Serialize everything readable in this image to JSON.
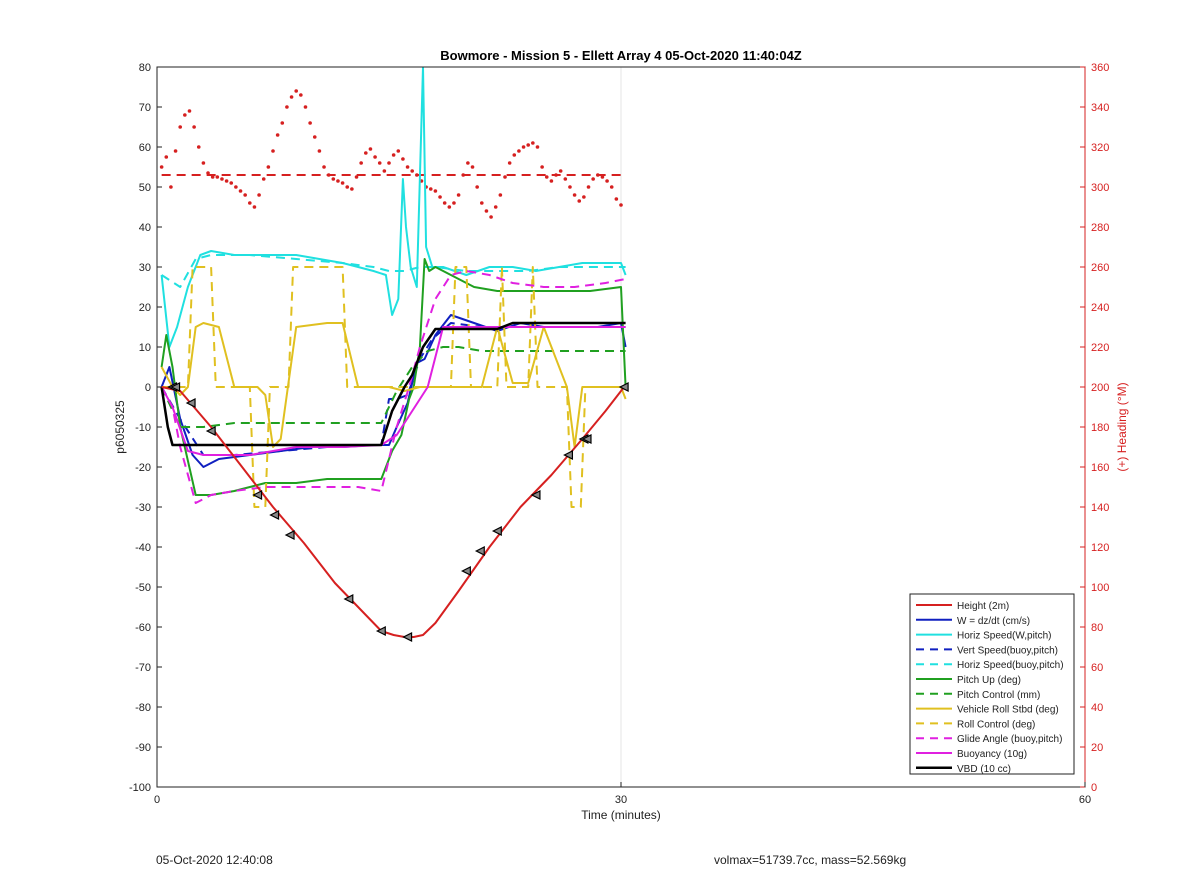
{
  "chart_data": {
    "type": "line",
    "title": "Bowmore - Mission 5 - Ellett Array 4 05-Oct-2020 11:40:04Z",
    "xlabel": "Time (minutes)",
    "ylabel": "p6050325",
    "y2label": "(+) Heading (°M)",
    "xlim": [
      0,
      60
    ],
    "ylim": [
      -100,
      80
    ],
    "y2lim": [
      0,
      360
    ],
    "xticks": [
      0,
      30,
      60
    ],
    "yticks": [
      -100,
      -90,
      -80,
      -70,
      -60,
      -50,
      -40,
      -30,
      -20,
      -10,
      0,
      10,
      20,
      30,
      40,
      50,
      60,
      70,
      80
    ],
    "y2ticks": [
      0,
      20,
      40,
      60,
      80,
      100,
      120,
      140,
      160,
      180,
      200,
      220,
      240,
      260,
      280,
      300,
      320,
      340,
      360
    ],
    "xgrid": [
      0,
      30,
      60
    ],
    "legend_position": "bottom-right",
    "series": [
      {
        "name": "Height (2m)",
        "color": "#d62020",
        "style": "solid",
        "width": 2,
        "x": [
          0.3,
          1.5,
          3.5,
          5.5,
          7.5,
          9.5,
          11.5,
          13.5,
          14.5,
          15.3,
          16.0,
          16.6,
          17.2,
          18.0,
          19.5,
          21.5,
          23.5,
          25.5,
          27.5,
          29.0,
          30.2
        ],
        "y": [
          0,
          -1,
          -10,
          -20,
          -30,
          -39,
          -49,
          -57,
          -61,
          -62,
          -62.5,
          -62.5,
          -62,
          -59,
          -51,
          -40,
          -30,
          -22,
          -13,
          -6,
          0
        ]
      },
      {
        "name": "W = dz/dt (cm/s)",
        "color": "#1020c0",
        "style": "solid",
        "width": 2,
        "x": [
          0.3,
          0.8,
          1.5,
          2.3,
          3.0,
          4.0,
          6.0,
          8.0,
          10.0,
          12.0,
          14.0,
          14.5,
          15.0,
          15.5,
          16.2,
          16.8,
          17.3,
          18.0,
          19.0,
          20.5,
          22.0,
          23.5,
          25.0,
          27.0,
          28.5,
          30.0,
          30.3
        ],
        "y": [
          0,
          5,
          -8,
          -17,
          -20,
          -18,
          -17,
          -16,
          -15,
          -15,
          -14.5,
          -14.5,
          -14.5,
          -10,
          -4,
          6,
          7,
          13,
          18,
          16,
          14,
          16,
          15,
          15,
          15,
          16,
          10
        ]
      },
      {
        "name": "Horiz Speed(W,pitch)",
        "color": "#20e0e0",
        "style": "solid",
        "width": 2,
        "x": [
          0.3,
          0.8,
          1.3,
          2.0,
          2.8,
          3.5,
          5.0,
          7.0,
          9.0,
          10.5,
          12.0,
          13.0,
          14.0,
          14.8,
          15.2,
          15.6,
          15.9,
          16.1,
          16.4,
          16.8,
          17.2,
          17.4,
          17.8,
          18.5,
          20.0,
          21.5,
          23.0,
          24.5,
          26.0,
          27.5,
          29.0,
          30.0,
          30.3
        ],
        "y": [
          28,
          10,
          15,
          25,
          33,
          34,
          33,
          33,
          33,
          32,
          31,
          30,
          29,
          28,
          18,
          22,
          52,
          40,
          30,
          25,
          80,
          35,
          30,
          30,
          28,
          30,
          30,
          29,
          30,
          31,
          31,
          31,
          28
        ]
      },
      {
        "name": "Vert Speed(buoy,pitch)",
        "color": "#1020c0",
        "style": "dashed",
        "width": 2,
        "x": [
          0.3,
          1.5,
          3.0,
          5.0,
          8.0,
          11.0,
          14.0,
          14.5,
          15.0,
          15.5,
          16.2,
          17.0,
          17.8,
          19.0,
          21.0,
          23.0,
          25.0,
          27.0,
          29.0,
          30.3
        ],
        "y": [
          0,
          -8,
          -17,
          -17,
          -16,
          -15,
          -14.5,
          -14.5,
          -3,
          -3,
          -2,
          7,
          12,
          16,
          15,
          15,
          15,
          15,
          15,
          15
        ]
      },
      {
        "name": "Horiz Speed(buoy,pitch)",
        "color": "#20e0e0",
        "style": "dashed",
        "width": 2,
        "x": [
          0.3,
          1.5,
          2.5,
          3.5,
          6.0,
          9.0,
          12.0,
          14.0,
          15.0,
          16.0,
          17.0,
          18.0,
          20.0,
          22.0,
          24.0,
          26.0,
          28.0,
          30.0,
          30.3
        ],
        "y": [
          28,
          25,
          32,
          33,
          33,
          32,
          31,
          30,
          29,
          29,
          30,
          30,
          29,
          29,
          29,
          30,
          30,
          30,
          30
        ]
      },
      {
        "name": "Pitch Up (deg)",
        "color": "#20a020",
        "style": "solid",
        "width": 2,
        "x": [
          0.3,
          0.6,
          1.0,
          1.5,
          2.5,
          3.5,
          5.0,
          7.0,
          9.0,
          11.0,
          13.0,
          14.5,
          15.2,
          15.8,
          16.3,
          16.6,
          17.0,
          17.3,
          17.6,
          18.0,
          19.0,
          20.5,
          22.0,
          24.0,
          26.0,
          28.0,
          30.0,
          30.3
        ],
        "y": [
          5,
          13,
          5,
          -10,
          -27,
          -27,
          -26,
          -24,
          -24,
          -23,
          -23,
          -23,
          -16,
          -12,
          -3,
          0,
          10,
          32,
          29,
          30,
          28,
          25,
          24,
          24,
          24,
          24,
          25,
          0
        ]
      },
      {
        "name": "Pitch Control (mm)",
        "color": "#20a020",
        "style": "dashed",
        "width": 2,
        "x": [
          0.3,
          1.5,
          3.0,
          5.0,
          7.0,
          9.0,
          11.0,
          13.0,
          14.5,
          15.5,
          16.5,
          17.5,
          18.5,
          19.5,
          21.0,
          23.0,
          25.0,
          27.0,
          29.0,
          30.3
        ],
        "y": [
          0,
          -10,
          -10,
          -9,
          -9,
          -9,
          -9,
          -9,
          -9,
          -1,
          5,
          9,
          10,
          10,
          9,
          9,
          9,
          9,
          9,
          9
        ]
      },
      {
        "name": "Vehicle Roll Stbd (deg)",
        "color": "#e0c020",
        "style": "solid",
        "width": 2,
        "x": [
          0.3,
          1.0,
          1.5,
          2.0,
          2.5,
          3.0,
          4.0,
          5.0,
          6.5,
          7.0,
          7.5,
          8.0,
          9.0,
          11.0,
          12.0,
          13.0,
          15.0,
          16.0,
          17.0,
          18.0,
          20.0,
          21.0,
          22.0,
          23.0,
          24.0,
          25.0,
          26.5,
          27.0,
          27.5,
          28.5,
          30.0,
          30.3
        ],
        "y": [
          5,
          0,
          -2,
          0,
          15,
          16,
          15,
          0,
          0,
          -2,
          -15,
          -13,
          15,
          16,
          16,
          0,
          0,
          -1,
          0,
          0,
          0,
          0,
          15,
          1,
          1,
          15,
          0,
          -15,
          0,
          0,
          0,
          -3
        ]
      },
      {
        "name": "Roll Control (deg)",
        "color": "#e0c020",
        "style": "dashed",
        "width": 2,
        "x": [
          0.3,
          2.0,
          2.3,
          2.6,
          3.2,
          3.5,
          3.8,
          6.0,
          6.3,
          6.6,
          7.0,
          7.3,
          7.6,
          8.5,
          8.8,
          9.1,
          12.0,
          12.3,
          12.6,
          16.0,
          19.0,
          19.3,
          19.6,
          20.0,
          20.3,
          20.6,
          22.0,
          22.3,
          22.6,
          24.0,
          24.3,
          24.6,
          26.5,
          26.8,
          27.1,
          27.4,
          27.7,
          28.0,
          30.3
        ],
        "y": [
          0,
          0,
          30,
          30,
          30,
          30,
          0,
          0,
          -30,
          -30,
          -30,
          0,
          0,
          0,
          30,
          30,
          30,
          0,
          0,
          0,
          0,
          30,
          30,
          30,
          0,
          0,
          0,
          30,
          0,
          0,
          30,
          0,
          0,
          -30,
          -30,
          -30,
          0,
          0,
          0
        ]
      },
      {
        "name": "Glide Angle (buoy,pitch)",
        "color": "#e020e0",
        "style": "dashed",
        "width": 2,
        "x": [
          0.3,
          1.0,
          1.5,
          2.5,
          3.5,
          5.0,
          7.0,
          9.0,
          11.0,
          13.0,
          14.5,
          15.5,
          16.3,
          17.0,
          18.0,
          19.0,
          20.0,
          21.5,
          23.0,
          25.0,
          27.0,
          29.0,
          30.3
        ],
        "y": [
          0,
          -5,
          -15,
          -29,
          -27,
          -26,
          -25,
          -25,
          -25,
          -25,
          -26,
          -10,
          0,
          10,
          22,
          28,
          29,
          28,
          26,
          25,
          25,
          26,
          27
        ]
      },
      {
        "name": "Buoyancy (10g)",
        "color": "#e020e0",
        "style": "solid",
        "width": 2,
        "x": [
          0.3,
          1.0,
          2.0,
          3.0,
          6.0,
          9.0,
          12.0,
          14.5,
          15.5,
          16.5,
          17.5,
          18.5,
          20.0,
          22.0,
          24.0,
          26.0,
          28.0,
          30.3
        ],
        "y": [
          0,
          -5,
          -16,
          -17,
          -17,
          -15,
          -15,
          -14.5,
          -12,
          -6,
          0,
          15,
          15,
          15,
          15,
          15,
          15,
          15
        ]
      },
      {
        "name": "VBD (10 cc)",
        "color": "#000000",
        "style": "solid",
        "width": 2.5,
        "x": [
          0.3,
          0.7,
          1.0,
          1.5,
          3.0,
          6.0,
          9.0,
          12.0,
          14.0,
          14.5,
          15.2,
          16.0,
          16.5,
          17.2,
          18.0,
          19.0,
          20.0,
          22.0,
          23.0,
          24.0,
          26.0,
          28.0,
          30.3
        ],
        "y": [
          0,
          -10,
          -14.5,
          -14.5,
          -14.5,
          -14.5,
          -14.5,
          -14.5,
          -14.5,
          -14.5,
          -6,
          0,
          3,
          10,
          14.5,
          14.5,
          14.5,
          14.5,
          16,
          16,
          16,
          16,
          16
        ]
      }
    ],
    "heading_points": {
      "name": "Heading",
      "color": "#d62020",
      "axis": "right",
      "x": [
        0.3,
        0.6,
        0.9,
        1.2,
        1.5,
        1.8,
        2.1,
        2.4,
        2.7,
        3.0,
        3.3,
        3.6,
        3.9,
        4.2,
        4.5,
        4.8,
        5.1,
        5.4,
        5.7,
        6.0,
        6.3,
        6.6,
        6.9,
        7.2,
        7.5,
        7.8,
        8.1,
        8.4,
        8.7,
        9.0,
        9.3,
        9.6,
        9.9,
        10.2,
        10.5,
        10.8,
        11.1,
        11.4,
        11.7,
        12.0,
        12.3,
        12.6,
        12.9,
        13.2,
        13.5,
        13.8,
        14.1,
        14.4,
        14.7,
        15.0,
        15.3,
        15.6,
        15.9,
        16.2,
        16.5,
        16.8,
        17.1,
        17.4,
        17.7,
        18.0,
        18.3,
        18.6,
        18.9,
        19.2,
        19.5,
        19.8,
        20.1,
        20.4,
        20.7,
        21.0,
        21.3,
        21.6,
        21.9,
        22.2,
        22.5,
        22.8,
        23.1,
        23.4,
        23.7,
        24.0,
        24.3,
        24.6,
        24.9,
        25.2,
        25.5,
        25.8,
        26.1,
        26.4,
        26.7,
        27.0,
        27.3,
        27.6,
        27.9,
        28.2,
        28.5,
        28.8,
        29.1,
        29.4,
        29.7,
        30.0
      ],
      "y": [
        310,
        315,
        300,
        318,
        330,
        336,
        338,
        330,
        320,
        312,
        307,
        305,
        305,
        304,
        303,
        302,
        300,
        298,
        296,
        292,
        290,
        296,
        304,
        310,
        318,
        326,
        332,
        340,
        345,
        348,
        346,
        340,
        332,
        325,
        318,
        310,
        306,
        304,
        303,
        302,
        300,
        299,
        305,
        312,
        317,
        319,
        315,
        312,
        308,
        312,
        316,
        318,
        314,
        310,
        308,
        306,
        303,
        300,
        299,
        298,
        295,
        292,
        290,
        292,
        296,
        306,
        312,
        310,
        300,
        292,
        288,
        285,
        290,
        296,
        305,
        312,
        316,
        318,
        320,
        321,
        322,
        320,
        310,
        305,
        303,
        306,
        308,
        304,
        300,
        296,
        293,
        295,
        300,
        304,
        306,
        305,
        303,
        300,
        294,
        291
      ]
    },
    "heading_reference": {
      "value": 306,
      "color": "#d62020",
      "style": "dashed",
      "x": [
        0.3,
        30.3
      ]
    },
    "height_markers": {
      "x": [
        1.0,
        1.2,
        2.2,
        3.5,
        6.5,
        7.6,
        8.6,
        12.4,
        14.5,
        16.2,
        20.0,
        20.9,
        22.0,
        24.5,
        26.6,
        27.6,
        27.8,
        30.2
      ],
      "y": [
        0,
        0,
        -4,
        -11,
        -27,
        -32,
        -37,
        -53,
        -61,
        -62.5,
        -46,
        -41,
        -36,
        -27,
        -17,
        -13,
        -13,
        0
      ]
    }
  },
  "footer": {
    "left": "05-Oct-2020 12:40:08",
    "right": "volmax=51739.7cc, mass=52.569kg"
  }
}
